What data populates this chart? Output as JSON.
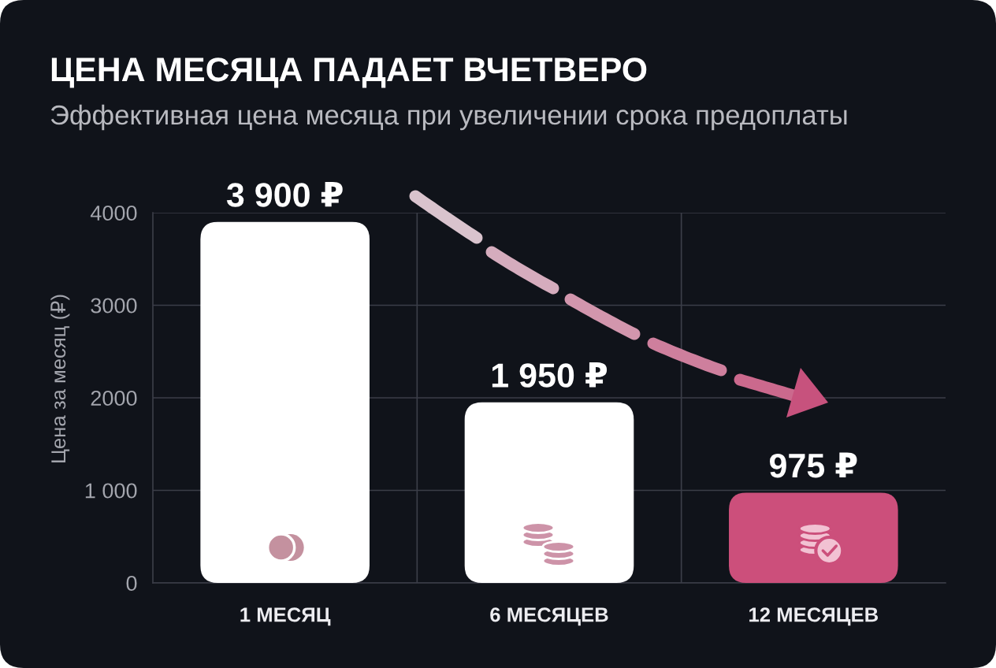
{
  "chart_data": {
    "type": "bar",
    "title": "ЦЕНА МЕСЯЦА ПАДАЕТ ВЧЕТВЕРО",
    "subtitle": "Эффективная цена месяца при увеличении срока предоплаты",
    "ylabel": "Цена за месяц (₽)",
    "categories": [
      "1 МЕСЯЦ",
      "6 МЕСЯЦЕВ",
      "12 МЕСЯЦЕВ"
    ],
    "values": [
      3900,
      1950,
      975
    ],
    "colors": [
      "#ffffff",
      "#ffffff",
      "#cc4f7b"
    ],
    "value_labels": [
      "3 900 ₽",
      "1 950 ₽",
      "975 ₽"
    ],
    "ylim": [
      0,
      4000
    ],
    "yticks": [
      0,
      {
        "value": 1000,
        "label": "1 000"
      },
      2000,
      3000,
      4000
    ],
    "grid": true
  }
}
